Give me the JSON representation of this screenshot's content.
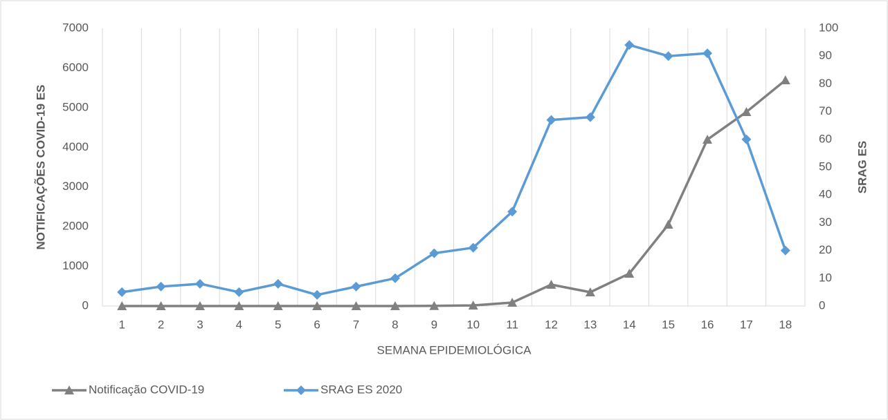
{
  "chart_data": {
    "type": "line",
    "x_label": "SEMANA EPIDEMIOLÓGICA",
    "y_label": "NOTIFICAÇÕES COVID-19 ES",
    "y2_label": "SRAG ES",
    "categories": [
      1,
      2,
      3,
      4,
      5,
      6,
      7,
      8,
      9,
      10,
      11,
      12,
      13,
      14,
      15,
      16,
      17,
      18
    ],
    "series": [
      {
        "name": "Notificação COVID-19",
        "color": "#808080",
        "marker": "triangle",
        "values": [
          0,
          0,
          0,
          0,
          0,
          0,
          0,
          0,
          5,
          15,
          87,
          540,
          348,
          818,
          2055,
          4196,
          4892,
          5693
        ]
      },
      {
        "name": "SRAG  ES 2020",
        "color": "#5b9bd5",
        "marker": "diamond",
        "axis": "y2",
        "values": [
          5,
          7,
          8,
          5,
          8,
          4,
          7,
          10,
          19,
          21,
          34,
          67,
          68,
          94,
          90,
          91,
          60,
          20
        ]
      }
    ],
    "ylim": [
      0,
      7000
    ],
    "yticks": [
      0,
      1000,
      2000,
      3000,
      4000,
      5000,
      6000,
      7000
    ],
    "y2lim": [
      0,
      100
    ],
    "y2ticks": [
      0,
      10,
      20,
      30,
      40,
      50,
      60,
      70,
      80,
      90,
      100
    ],
    "xgrid": true,
    "legend": "bottom-left"
  }
}
